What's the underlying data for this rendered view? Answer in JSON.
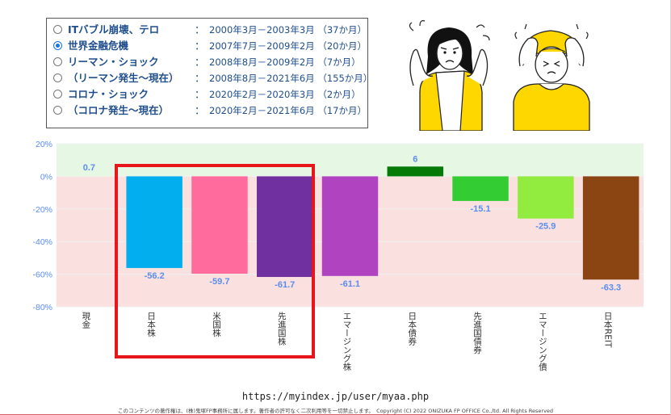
{
  "periods": [
    {
      "name": "ITバブル崩壊、テロ",
      "range": "2000年3月－2003年3月 （37か月）",
      "selected": false
    },
    {
      "name": "世界金融危機",
      "range": "2007年7月－2009年2月 （20か月）",
      "selected": true
    },
    {
      "name": "リーマン・ショック",
      "range": "2008年8月－2009年2月 （7か月）",
      "selected": false
    },
    {
      "name": "（リーマン発生～現在）",
      "range": "2008年8月－2021年6月 （155か月）",
      "selected": false
    },
    {
      "name": "コロナ・ショック",
      "range": "2020年2月－2020年3月 （2か月）",
      "selected": false
    },
    {
      "name": "（コロナ発生～現在）",
      "range": "2020年2月－2021年6月 （17か月）",
      "selected": false
    }
  ],
  "separator": "：",
  "colors": {
    "positive_band": "#e6f7e4",
    "negative_band": "#fae1df",
    "label_color": "#5b8def",
    "highlight": "#e8161b"
  },
  "chart_data": {
    "type": "bar",
    "categories": [
      "現金",
      "日本株",
      "米国株",
      "先進国株",
      "エマージング株",
      "日本債券",
      "先進国債券",
      "エマージング債",
      "日本REIT"
    ],
    "values": [
      0.7,
      -56.2,
      -59.7,
      -61.7,
      -61.1,
      6,
      -15.1,
      -25.9,
      -63.3
    ],
    "value_labels": [
      "0.7",
      "-56.2",
      "-59.7",
      "-61.7",
      "-61.1",
      "6",
      "-15.1",
      "-25.9",
      "-63.3"
    ],
    "bar_colors": [
      "#e6f7e4",
      "#03aeee",
      "#ff6b9c",
      "#7030a0",
      "#b044c0",
      "#067a06",
      "#33cc33",
      "#92eb3f",
      "#8b4513"
    ],
    "yticks": [
      "20%",
      "0%",
      "-20%",
      "-40%",
      "-60%",
      "-80%"
    ],
    "ytick_values": [
      20,
      0,
      -20,
      -40,
      -60,
      -80
    ],
    "ylim": [
      -80,
      20
    ],
    "highlighted_categories": [
      "日本株",
      "米国株",
      "先進国株"
    ]
  },
  "footer": {
    "url": "https://myindex.jp/user/myaa.php",
    "copyright": "このコンテンツの著作権は、(株)鬼塚FP事務所に属します。著作者の許可なく二次利用等を一切禁止します。　Copyright (C) 2022 ONIZUKA FP OFFICE Co.,ltd. All Rights Reserved"
  }
}
